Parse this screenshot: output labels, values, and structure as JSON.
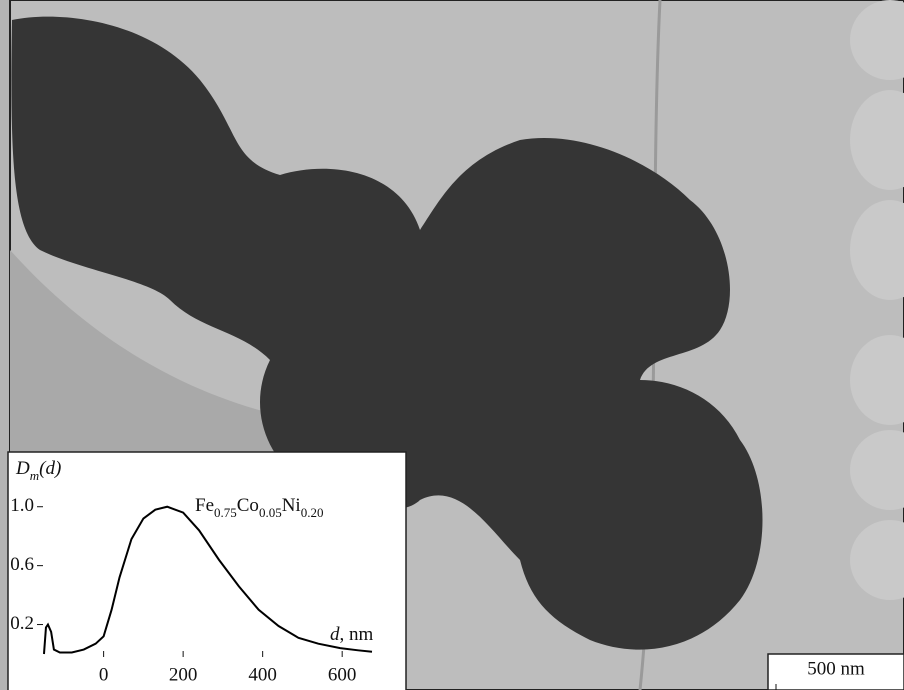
{
  "chart_data": {
    "type": "line",
    "ylabel_parts": [
      "D",
      "m",
      "(d)"
    ],
    "xlabel_parts": [
      "d",
      ", nm"
    ],
    "annotation_parts": [
      "Fe",
      "0.75",
      "Co",
      "0.05",
      "Ni",
      "0.20"
    ],
    "scale_bar": "500 nm",
    "x": [
      -150,
      -145,
      -140,
      -132,
      -125,
      -110,
      -80,
      -50,
      -20,
      0,
      20,
      40,
      70,
      100,
      130,
      160,
      200,
      240,
      290,
      340,
      390,
      440,
      490,
      540,
      595,
      640,
      675
    ],
    "series": [
      {
        "color": "#000000",
        "values": [
          0,
          0.18,
          0.2,
          0.15,
          0.03,
          0.01,
          0.01,
          0.03,
          0.07,
          0.12,
          0.3,
          0.52,
          0.78,
          0.92,
          0.98,
          1.0,
          0.96,
          0.84,
          0.64,
          0.46,
          0.3,
          0.19,
          0.11,
          0.07,
          0.04,
          0.025,
          0.015
        ]
      }
    ],
    "xlim": [
      -160,
      675
    ],
    "ylim": [
      0,
      1.1
    ],
    "xticks": [
      0,
      200,
      400,
      600
    ],
    "yticks": [
      {
        "value": 0.2,
        "label": "0.2"
      },
      {
        "value": 0.6,
        "label": "0.6"
      },
      {
        "value": 1.0,
        "label": "1.0"
      }
    ]
  }
}
